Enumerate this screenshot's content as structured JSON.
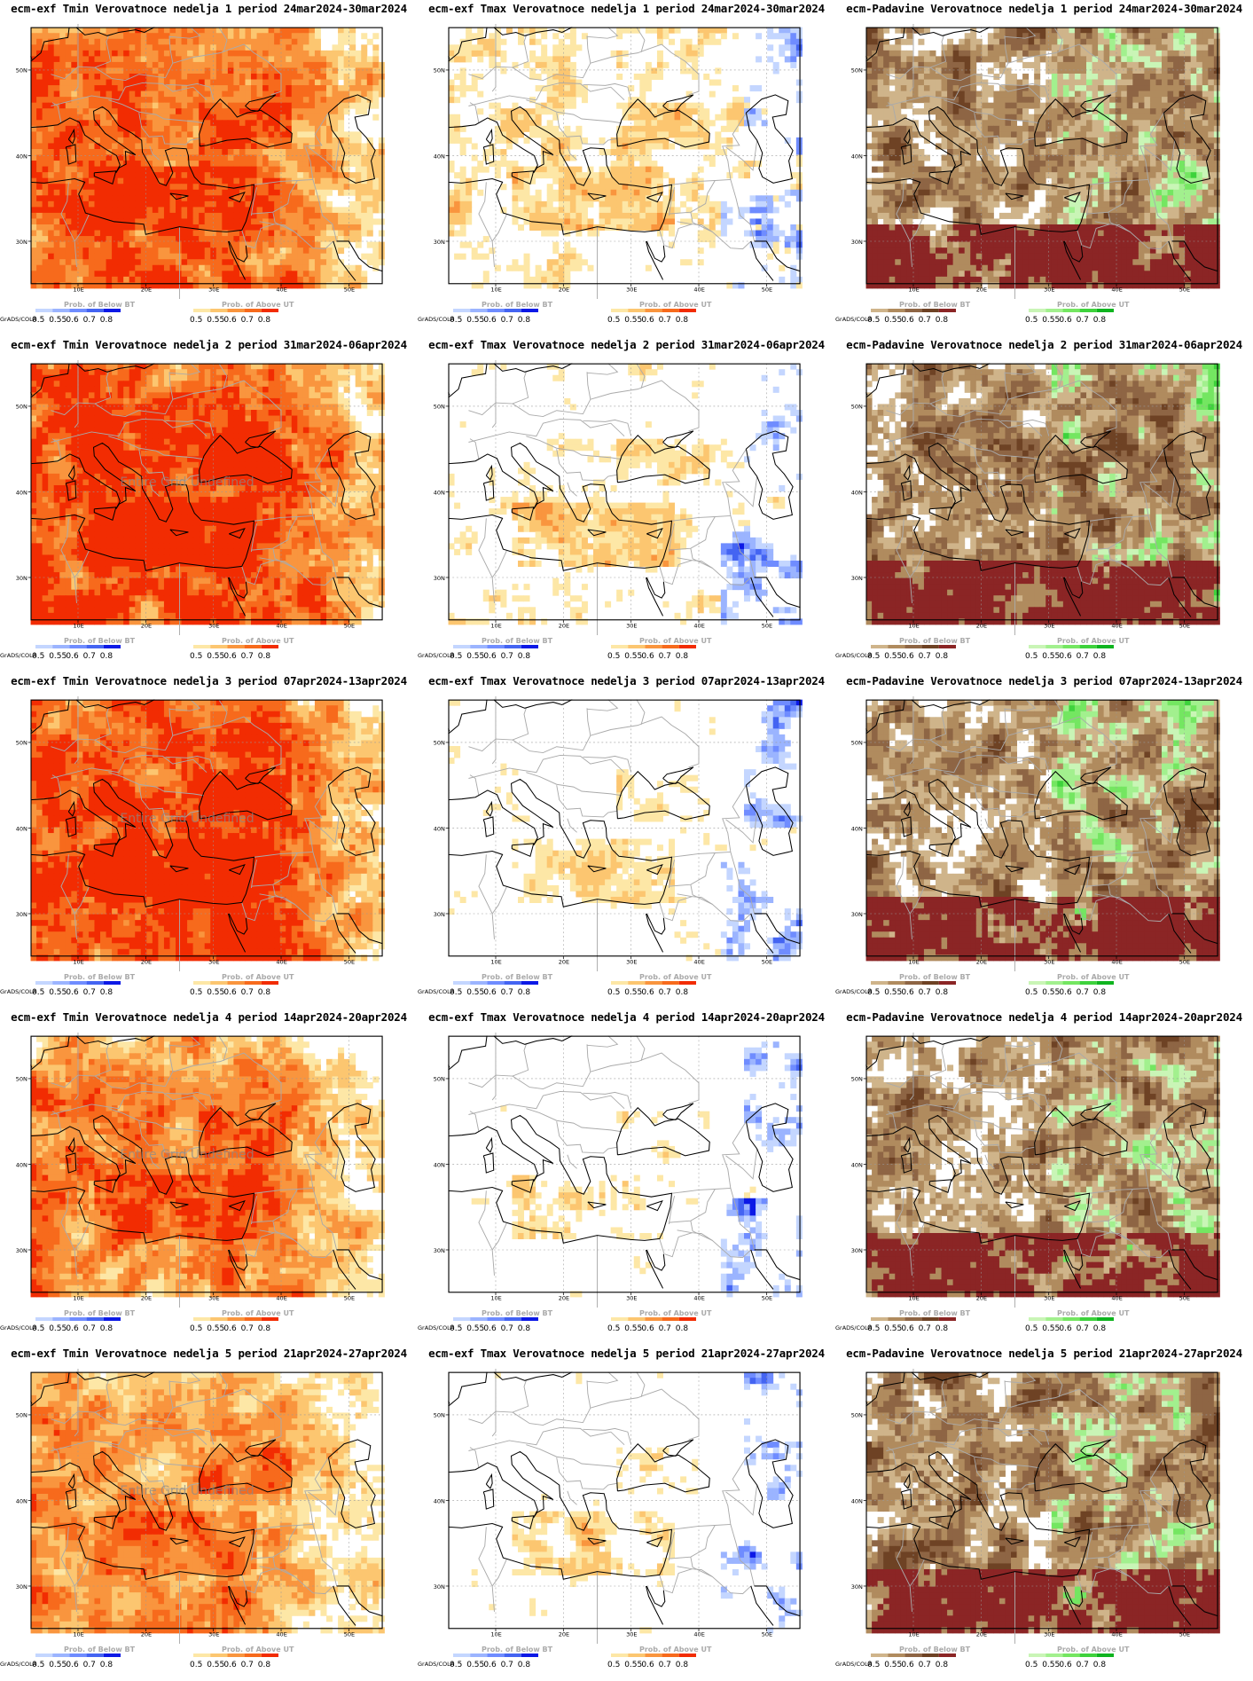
{
  "colors": {
    "above_temp": [
      "#fde7a6",
      "#fcc670",
      "#f9953e",
      "#f76a1c",
      "#f22c02"
    ],
    "below_temp": [
      "#c4d6ff",
      "#9bb4ff",
      "#6f8cff",
      "#4464f2",
      "#0c19e6"
    ],
    "above_precip": [
      "#c9f5b6",
      "#a2f08e",
      "#74e661",
      "#3ed23c",
      "#0fb41f"
    ],
    "below_precip": [
      "#cfb48a",
      "#b08b5e",
      "#8e6544",
      "#6e4224",
      "#8b2525"
    ],
    "land_gray": "#aaaaaa",
    "coast": "#000000"
  },
  "axes": {
    "x_ticks": [
      "10E",
      "20E",
      "30E",
      "40E",
      "50E"
    ],
    "y_ticks": [
      "50N",
      "40N",
      "30N"
    ]
  },
  "legend": {
    "values": [
      "0.5",
      "0.55",
      "0.6",
      "0.7",
      "0.8"
    ],
    "below_title": "Prob. of Below BT",
    "above_title": "Prob. of Above UT",
    "credit": "GrADS/COLA"
  },
  "watermark": "Entire Grid Undefined",
  "panels": [
    {
      "title": "ecm-exf Tmin Verovatnoce nedelja 1 period 24mar2024-30mar2024",
      "kind": "tmin",
      "level": 0.8,
      "coverage": 0.8,
      "watermark": false
    },
    {
      "title": "ecm-exf Tmax Verovatnoce nedelja 1 period 24mar2024-30mar2024",
      "kind": "tmax",
      "level": 0.6,
      "coverage": 0.55,
      "watermark": false
    },
    {
      "title": "ecm-Padavine Verovatnoce nedelja 1 period 24mar2024-30mar2024",
      "kind": "precip",
      "level": 0.55,
      "coverage": 0.8,
      "watermark": false
    },
    {
      "title": "ecm-exf Tmin Verovatnoce nedelja 2 period 31mar2024-06apr2024",
      "kind": "tmin",
      "level": 0.85,
      "coverage": 0.95,
      "watermark": true
    },
    {
      "title": "ecm-exf Tmax Verovatnoce nedelja 2 period 31mar2024-06apr2024",
      "kind": "tmax",
      "level": 0.45,
      "coverage": 0.55,
      "watermark": false
    },
    {
      "title": "ecm-Padavine Verovatnoce nedelja 2 period 31mar2024-06apr2024",
      "kind": "precip",
      "level": 0.6,
      "coverage": 0.9,
      "watermark": false
    },
    {
      "title": "ecm-exf Tmin Verovatnoce nedelja 3 period 07apr2024-13apr2024",
      "kind": "tmin",
      "level": 0.85,
      "coverage": 0.95,
      "watermark": true
    },
    {
      "title": "ecm-exf Tmax Verovatnoce nedelja 3 period 07apr2024-13apr2024",
      "kind": "tmax",
      "level": 0.3,
      "coverage": 0.2,
      "watermark": false
    },
    {
      "title": "ecm-Padavine Verovatnoce nedelja 3 period 07apr2024-13apr2024",
      "kind": "precip",
      "level": 0.55,
      "coverage": 0.85,
      "watermark": false
    },
    {
      "title": "ecm-exf Tmin Verovatnoce nedelja 4 period 14apr2024-20apr2024",
      "kind": "tmin",
      "level": 0.65,
      "coverage": 0.9,
      "watermark": true
    },
    {
      "title": "ecm-exf Tmax Verovatnoce nedelja 4 period 14apr2024-20apr2024",
      "kind": "tmax",
      "level": 0.2,
      "coverage": 0.3,
      "watermark": false
    },
    {
      "title": "ecm-Padavine Verovatnoce nedelja 4 period 14apr2024-20apr2024",
      "kind": "precip",
      "level": 0.5,
      "coverage": 0.85,
      "watermark": false
    },
    {
      "title": "ecm-exf Tmin Verovatnoce nedelja 5 period 21apr2024-27apr2024",
      "kind": "tmin",
      "level": 0.55,
      "coverage": 0.75,
      "watermark": true
    },
    {
      "title": "ecm-exf Tmax Verovatnoce nedelja 5 period 21apr2024-27apr2024",
      "kind": "tmax",
      "level": 0.15,
      "coverage": 0.55,
      "watermark": false
    },
    {
      "title": "ecm-Padavine Verovatnoce nedelja 5 period 21apr2024-27apr2024",
      "kind": "precip",
      "level": 0.55,
      "coverage": 0.85,
      "watermark": false
    }
  ]
}
